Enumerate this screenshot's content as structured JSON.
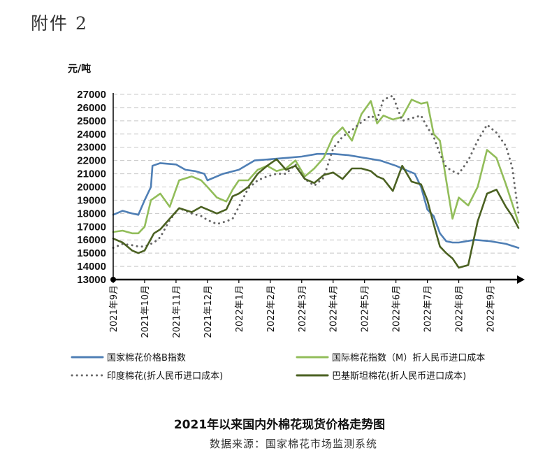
{
  "attachment_label": "附件 2",
  "chart_data": {
    "type": "line",
    "title": "2021年以来国内外棉花现货价格走势图",
    "source": "数据来源：国家棉花市场监测系统",
    "ylabel": "元/吨",
    "ylim": [
      13000,
      27000
    ],
    "yticks": [
      13000,
      14000,
      15000,
      16000,
      17000,
      18000,
      19000,
      20000,
      21000,
      22000,
      23000,
      24000,
      25000,
      26000,
      27000
    ],
    "xlim": [
      0,
      12.9
    ],
    "xticks": [
      0,
      1,
      2,
      3,
      4,
      5,
      6,
      7,
      8,
      9,
      10,
      11,
      12
    ],
    "categories": [
      "2021年9月",
      "2021年10月",
      "2021年11月",
      "2021年12月",
      "2022年1月",
      "2022年2月",
      "2022年3月",
      "2022年4月",
      "2022年5月",
      "2022年6月",
      "2022年7月",
      "2022年8月",
      "2022年9月"
    ],
    "grid": true,
    "legend_position": "bottom",
    "series": [
      {
        "name": "国家棉花价格B指数",
        "color": "#4f7fb5",
        "style": "solid",
        "x": [
          0,
          0.3,
          0.6,
          0.8,
          1.0,
          1.2,
          1.25,
          1.5,
          2.0,
          2.3,
          2.6,
          2.9,
          3.0,
          3.5,
          4.0,
          4.5,
          5.0,
          5.5,
          6.0,
          6.5,
          7.0,
          7.5,
          8.0,
          8.5,
          9.0,
          9.3,
          9.6,
          9.8,
          10.0,
          10.2,
          10.4,
          10.6,
          10.8,
          11.0,
          11.5,
          12.0,
          12.5,
          12.9
        ],
        "values": [
          17900,
          18200,
          18000,
          17900,
          19000,
          20000,
          21600,
          21800,
          21700,
          21300,
          21200,
          21000,
          20500,
          21000,
          21300,
          22000,
          22100,
          22200,
          22300,
          22500,
          22500,
          22400,
          22200,
          22000,
          21600,
          21300,
          21000,
          20000,
          18300,
          17800,
          16500,
          15900,
          15800,
          15800,
          16000,
          15900,
          15700,
          15400
        ]
      },
      {
        "name": "国际棉花指数（M）折人民币进口成本",
        "color": "#92bd5a",
        "style": "solid",
        "x": [
          0,
          0.3,
          0.6,
          0.8,
          1.0,
          1.2,
          1.5,
          1.8,
          2.1,
          2.5,
          2.8,
          3.0,
          3.3,
          3.6,
          3.8,
          4.0,
          4.3,
          4.6,
          4.9,
          5.2,
          5.5,
          5.8,
          6.1,
          6.4,
          6.7,
          7.0,
          7.3,
          7.6,
          7.9,
          8.2,
          8.4,
          8.6,
          8.9,
          9.2,
          9.5,
          9.8,
          10.0,
          10.2,
          10.4,
          10.6,
          10.8,
          11.0,
          11.3,
          11.6,
          11.9,
          12.2,
          12.5,
          12.9
        ],
        "values": [
          16600,
          16700,
          16500,
          16500,
          17000,
          19000,
          19500,
          18500,
          20500,
          20800,
          20500,
          20000,
          19200,
          18900,
          19800,
          20500,
          20500,
          21300,
          21600,
          21200,
          21400,
          22000,
          20800,
          21400,
          22200,
          23800,
          24500,
          23500,
          25500,
          26500,
          24800,
          25400,
          25100,
          25300,
          26600,
          26300,
          26400,
          24000,
          23500,
          20500,
          17600,
          19200,
          18600,
          20000,
          22800,
          22200,
          20200,
          17300
        ]
      },
      {
        "name": "印度棉花(折人民币进口成本)",
        "color": "#666666",
        "style": "dotted",
        "x": [
          0,
          0.3,
          0.6,
          0.8,
          1.0,
          1.3,
          1.5,
          1.8,
          2.1,
          2.5,
          2.8,
          3.0,
          3.3,
          3.6,
          3.8,
          4.0,
          4.3,
          4.6,
          4.9,
          5.2,
          5.5,
          5.8,
          6.1,
          6.4,
          6.7,
          7.0,
          7.3,
          7.6,
          7.9,
          8.2,
          8.4,
          8.6,
          8.9,
          9.2,
          9.5,
          9.8,
          10.0,
          10.2,
          10.4,
          10.6,
          10.8,
          11.0,
          11.3,
          11.6,
          11.9,
          12.2,
          12.5,
          12.7,
          12.9
        ],
        "values": [
          15400,
          15700,
          15600,
          15500,
          15500,
          15800,
          16200,
          17500,
          18400,
          18000,
          17800,
          17500,
          17200,
          17400,
          17600,
          18500,
          19900,
          20500,
          20800,
          21000,
          21000,
          21700,
          20600,
          20100,
          20700,
          22900,
          23800,
          24300,
          24900,
          25400,
          25100,
          26600,
          26900,
          25000,
          25200,
          25400,
          24500,
          23800,
          22500,
          21500,
          21200,
          21000,
          22000,
          23500,
          24700,
          24100,
          23100,
          21500,
          18000
        ]
      },
      {
        "name": "巴基斯坦棉花(折人民币进口成本)",
        "color": "#4b6122",
        "style": "solid",
        "x": [
          0,
          0.3,
          0.6,
          0.8,
          1.0,
          1.3,
          1.5,
          1.8,
          2.1,
          2.5,
          2.8,
          3.0,
          3.3,
          3.6,
          3.8,
          4.0,
          4.3,
          4.6,
          4.9,
          5.2,
          5.5,
          5.8,
          6.1,
          6.4,
          6.7,
          7.0,
          7.3,
          7.6,
          7.9,
          8.2,
          8.4,
          8.6,
          8.9,
          9.2,
          9.5,
          9.8,
          10.0,
          10.2,
          10.4,
          10.6,
          10.8,
          11.0,
          11.3,
          11.6,
          11.9,
          12.2,
          12.5,
          12.7,
          12.9
        ],
        "values": [
          16100,
          15800,
          15200,
          15000,
          15200,
          16500,
          16800,
          17600,
          18400,
          18100,
          18500,
          18300,
          18000,
          18300,
          19300,
          19500,
          20000,
          21000,
          21600,
          22100,
          21300,
          21600,
          20600,
          20300,
          20900,
          21100,
          20600,
          21400,
          21400,
          21200,
          20800,
          20600,
          19700,
          21600,
          20400,
          20200,
          19000,
          17200,
          15500,
          15000,
          14600,
          13900,
          14100,
          17400,
          19500,
          19800,
          18500,
          17800,
          16900
        ]
      }
    ]
  }
}
